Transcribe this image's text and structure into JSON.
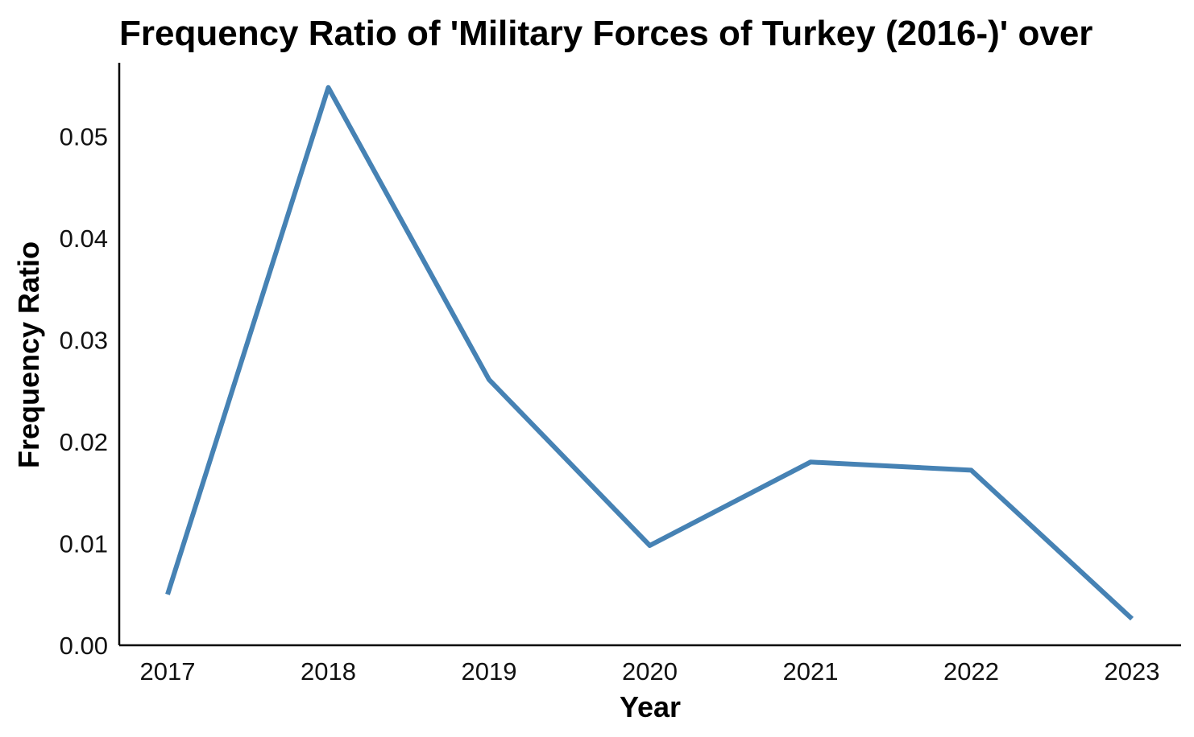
{
  "chart_data": {
    "type": "line",
    "title": "Frequency Ratio of 'Military Forces of Turkey (2016-)' over",
    "xlabel": "Year",
    "ylabel": "Frequency Ratio",
    "categories": [
      "2017",
      "2018",
      "2019",
      "2020",
      "2021",
      "2022",
      "2023"
    ],
    "series": [
      {
        "values": [
          0.005,
          0.0548,
          0.0261,
          0.0098,
          0.018,
          0.0172,
          0.0026
        ]
      }
    ],
    "ylim": [
      0,
      0.057
    ],
    "yticks": [
      0.0,
      0.01,
      0.02,
      0.03,
      0.04,
      0.05
    ],
    "ytick_labels": [
      "0.00",
      "0.01",
      "0.02",
      "0.03",
      "0.04",
      "0.05"
    ],
    "grid": false,
    "legend": "none",
    "colors": {
      "line": "#4682B4",
      "axis": "#000000"
    }
  }
}
